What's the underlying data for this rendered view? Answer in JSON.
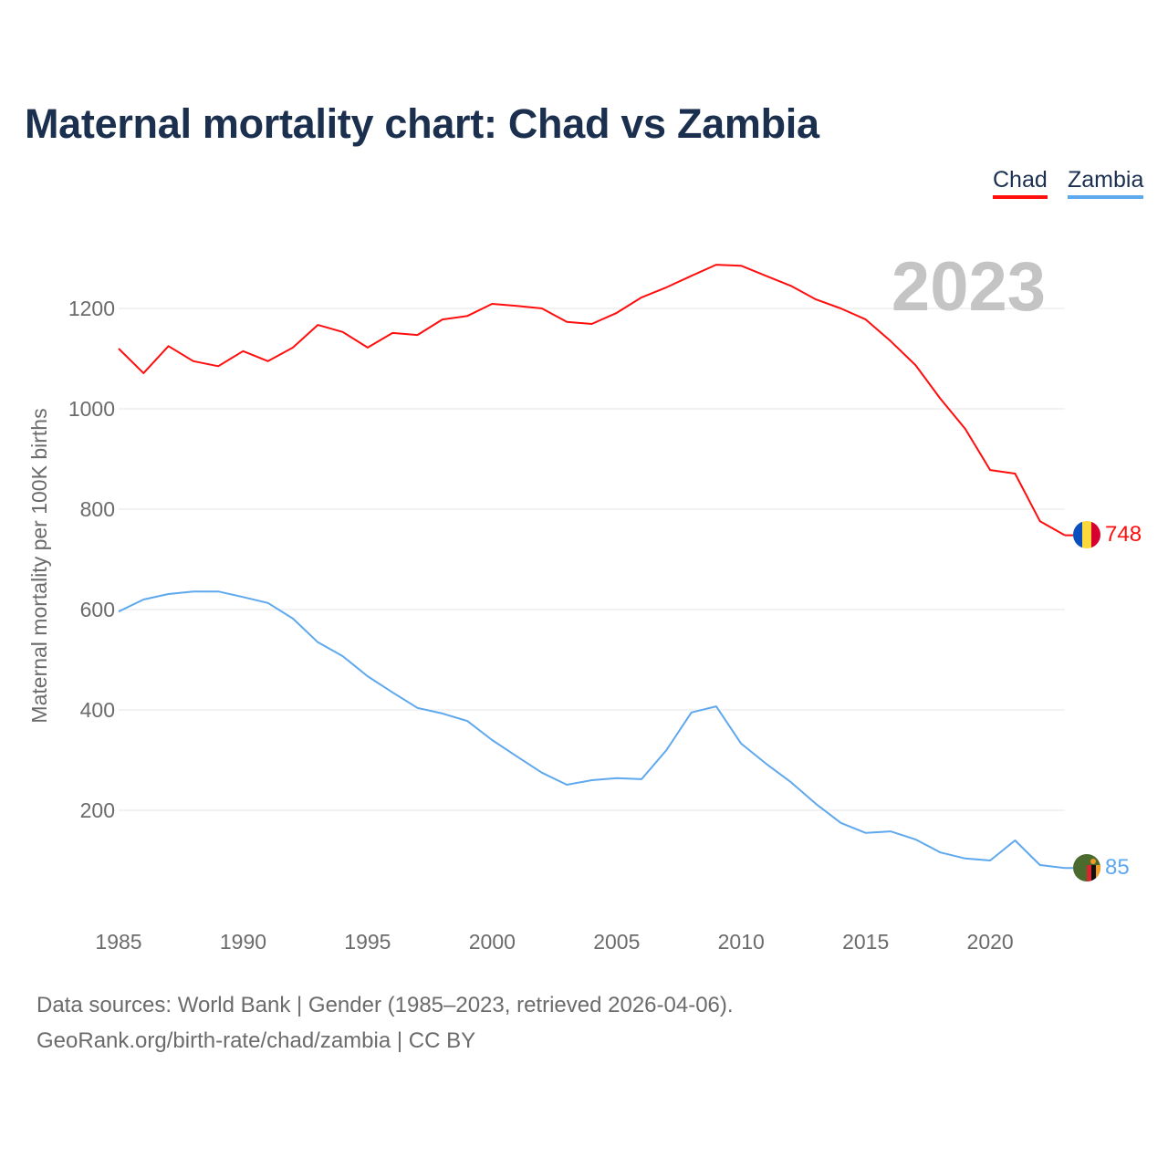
{
  "title": "Maternal mortality chart: Chad vs Zambia",
  "footer": {
    "line1": "Data sources: World Bank | Gender (1985–2023, retrieved 2026-04-06).",
    "line2": "GeoRank.org/birth-rate/chad/zambia | CC BY"
  },
  "chart_data": {
    "type": "line",
    "title": "Maternal mortality chart: Chad vs Zambia",
    "ylabel": "Maternal mortality per 100K births",
    "xlabel": "",
    "year_label": "2023",
    "xlim": [
      1985,
      2023
    ],
    "ylim": [
      0,
      1300
    ],
    "yticks": [
      200,
      400,
      600,
      800,
      1000,
      1200
    ],
    "xticks": [
      1985,
      1990,
      1995,
      2000,
      2005,
      2010,
      2015,
      2020
    ],
    "grid": true,
    "legend_position": "top-right",
    "x": [
      1985,
      1986,
      1987,
      1988,
      1989,
      1990,
      1991,
      1992,
      1993,
      1994,
      1995,
      1996,
      1997,
      1998,
      1999,
      2000,
      2001,
      2002,
      2003,
      2004,
      2005,
      2006,
      2007,
      2008,
      2009,
      2010,
      2011,
      2012,
      2013,
      2014,
      2015,
      2016,
      2017,
      2018,
      2019,
      2020,
      2021,
      2022,
      2023
    ],
    "series": [
      {
        "name": "Chad",
        "color": "#ff0d0d",
        "end_label": "748",
        "flag": "chad-flag",
        "values": [
          1120,
          1071,
          1125,
          1095,
          1085,
          1115,
          1095,
          1122,
          1167,
          1153,
          1122,
          1151,
          1147,
          1178,
          1185,
          1209,
          1205,
          1200,
          1173,
          1169,
          1191,
          1222,
          1242,
          1265,
          1287,
          1285,
          1265,
          1245,
          1218,
          1200,
          1178,
          1135,
          1087,
          1020,
          960,
          878,
          871,
          776,
          748
        ]
      },
      {
        "name": "Zambia",
        "color": "#5ea8ee",
        "end_label": "85",
        "flag": "zambia-flag",
        "values": [
          596,
          620,
          631,
          636,
          636,
          625,
          613,
          582,
          535,
          507,
          467,
          435,
          404,
          393,
          378,
          340,
          307,
          275,
          251,
          260,
          264,
          262,
          320,
          395,
          407,
          333,
          293,
          256,
          213,
          175,
          155,
          158,
          142,
          116,
          104,
          100,
          140,
          91,
          85
        ]
      }
    ]
  }
}
